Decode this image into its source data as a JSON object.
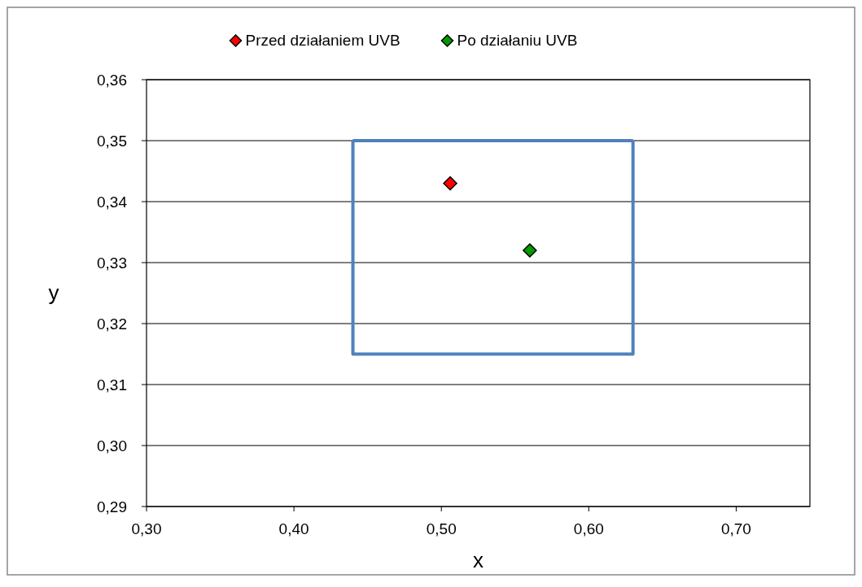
{
  "chart_data": {
    "type": "scatter",
    "xlabel": "x",
    "ylabel": "y",
    "xlim": [
      0.3,
      0.75
    ],
    "ylim": [
      0.29,
      0.36
    ],
    "xticks": [
      {
        "value": 0.3,
        "label": "0,30"
      },
      {
        "value": 0.4,
        "label": "0,40"
      },
      {
        "value": 0.5,
        "label": "0,50"
      },
      {
        "value": 0.6,
        "label": "0,60"
      },
      {
        "value": 0.7,
        "label": "0,70"
      }
    ],
    "yticks": [
      {
        "value": 0.29,
        "label": "0,29"
      },
      {
        "value": 0.3,
        "label": "0,30"
      },
      {
        "value": 0.31,
        "label": "0,31"
      },
      {
        "value": 0.32,
        "label": "0,32"
      },
      {
        "value": 0.33,
        "label": "0,33"
      },
      {
        "value": 0.34,
        "label": "0,34"
      },
      {
        "value": 0.35,
        "label": "0,35"
      },
      {
        "value": 0.36,
        "label": "0,36"
      }
    ],
    "grid": "y",
    "legend": "top",
    "marker": "diamond",
    "series": [
      {
        "type": "line",
        "color": "#4f81bd",
        "marker": "none",
        "x": [
          0.44,
          0.44,
          0.63,
          0.63
        ],
        "values": [
          0.35,
          0.315,
          0.315,
          0.35
        ]
      },
      {
        "type": "line",
        "color": "#4f81bd",
        "marker": "none",
        "x": [
          0.44,
          0.63
        ],
        "values": [
          0.35,
          0.35
        ]
      },
      {
        "name": "Przed działaniem UVB",
        "color": "#ff0000",
        "x": [
          0.506
        ],
        "values": [
          0.343
        ]
      },
      {
        "name": "Po działaniu UVB",
        "color": "#009900",
        "x": [
          0.56
        ],
        "values": [
          0.332
        ]
      }
    ]
  }
}
